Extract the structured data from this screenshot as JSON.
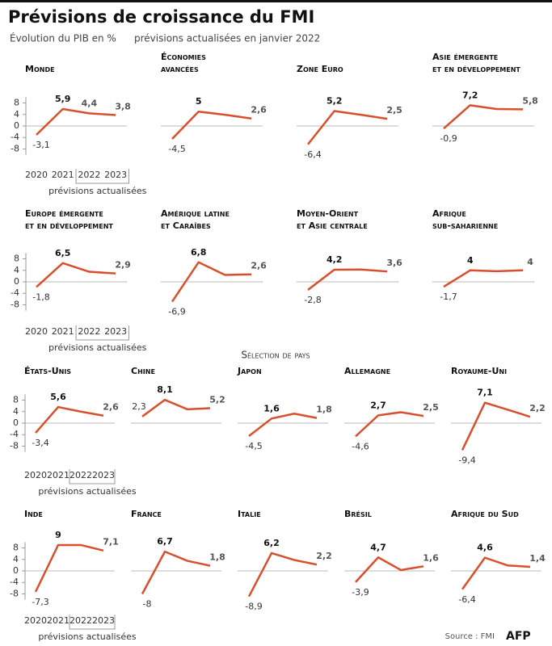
{
  "header": {
    "title": "Prévisions de croissance du FMI",
    "subtitle": "Évolution du PIB en %",
    "note": "prévisions actualisées en janvier 2022"
  },
  "section": "Sélection de pays",
  "source": "Source : FMI",
  "credit": "AFP",
  "chart_data": [
    {
      "type": "line",
      "title": [
        "Monde"
      ],
      "categories": [
        "2020",
        "2021",
        "2022",
        "2023"
      ],
      "xlabel": "prévisions actualisées",
      "values": [
        -3.1,
        5.9,
        4.4,
        3.8
      ],
      "value_labels": [
        "-3,1",
        "5,9",
        "4,4",
        "3,8"
      ],
      "color": "#d6502e",
      "ylim": [
        -10,
        10
      ],
      "yticks": [
        8,
        4,
        0,
        -4,
        -8
      ]
    },
    {
      "type": "line",
      "title": [
        "Économies",
        "avancées"
      ],
      "values": [
        -4.5,
        5,
        3.9,
        2.6
      ],
      "value_labels": [
        "-4,5",
        "5",
        null,
        "2,6"
      ],
      "color": "#d6502e",
      "ylim": [
        -10,
        10
      ]
    },
    {
      "type": "line",
      "title": [
        "Zone Euro"
      ],
      "values": [
        -6.4,
        5.2,
        3.9,
        2.5
      ],
      "value_labels": [
        "-6,4",
        "5,2",
        null,
        "2,5"
      ],
      "color": "#d6502e",
      "ylim": [
        -10,
        10
      ]
    },
    {
      "type": "line",
      "title": [
        "Asie émergente",
        "et en développement"
      ],
      "values": [
        -0.9,
        7.2,
        5.9,
        5.8
      ],
      "value_labels": [
        "-0,9",
        "7,2",
        null,
        "5,8"
      ],
      "color": "#d6502e",
      "ylim": [
        -10,
        10
      ]
    },
    {
      "type": "line",
      "title": [
        "Europe émergente",
        "et en développement"
      ],
      "categories": [
        "2020",
        "2021",
        "2022",
        "2023"
      ],
      "xlabel": "prévisions actualisées",
      "values": [
        -1.8,
        6.5,
        3.5,
        2.9
      ],
      "value_labels": [
        "-1,8",
        "6,5",
        null,
        "2,9"
      ],
      "color": "#d6502e",
      "ylim": [
        -10,
        10
      ],
      "yticks": [
        8,
        4,
        0,
        -4,
        -8
      ]
    },
    {
      "type": "line",
      "title": [
        "Amérique latine",
        "et Caraïbes"
      ],
      "values": [
        -6.9,
        6.8,
        2.4,
        2.6
      ],
      "value_labels": [
        "-6,9",
        "6,8",
        null,
        "2,6"
      ],
      "color": "#d6502e",
      "ylim": [
        -10,
        10
      ]
    },
    {
      "type": "line",
      "title": [
        "Moyen-Orient",
        "et Asie centrale"
      ],
      "values": [
        -2.8,
        4.2,
        4.3,
        3.6
      ],
      "value_labels": [
        "-2,8",
        "4,2",
        null,
        "3,6"
      ],
      "color": "#d6502e",
      "ylim": [
        -10,
        10
      ]
    },
    {
      "type": "line",
      "title": [
        "Afrique",
        "sub-saharienne"
      ],
      "values": [
        -1.7,
        4,
        3.7,
        4
      ],
      "value_labels": [
        "-1,7",
        "4",
        null,
        "4"
      ],
      "color": "#d6502e",
      "ylim": [
        -10,
        10
      ]
    },
    {
      "type": "line",
      "title": [
        "États-Unis"
      ],
      "categories": [
        "2020",
        "2021",
        "2022",
        "2023"
      ],
      "xlabel": "prévisions actualisées",
      "values": [
        -3.4,
        5.6,
        4.0,
        2.6
      ],
      "value_labels": [
        "-3,4",
        "5,6",
        null,
        "2,6"
      ],
      "color": "#d6502e",
      "ylim": [
        -10,
        10
      ],
      "yticks": [
        8,
        4,
        0,
        -4,
        -8
      ]
    },
    {
      "type": "line",
      "title": [
        "Chine"
      ],
      "values": [
        2.3,
        8.1,
        4.8,
        5.2
      ],
      "value_labels": [
        "2,3",
        "8,1",
        null,
        "5,2"
      ],
      "color": "#d6502e",
      "ylim": [
        -10,
        10
      ]
    },
    {
      "type": "line",
      "title": [
        "Japon"
      ],
      "values": [
        -4.5,
        1.6,
        3.3,
        1.8
      ],
      "value_labels": [
        "-4,5",
        "1,6",
        null,
        "1,8"
      ],
      "color": "#d6502e",
      "ylim": [
        -10,
        10
      ]
    },
    {
      "type": "line",
      "title": [
        "Allemagne"
      ],
      "values": [
        -4.6,
        2.7,
        3.8,
        2.5
      ],
      "value_labels": [
        "-4,6",
        "2,7",
        null,
        "2,5"
      ],
      "color": "#d6502e",
      "ylim": [
        -10,
        10
      ]
    },
    {
      "type": "line",
      "title": [
        "Royaume-Uni"
      ],
      "values": [
        -9.4,
        7.1,
        4.7,
        2.2
      ],
      "value_labels": [
        "-9,4",
        "7,1",
        null,
        "2,2"
      ],
      "color": "#d6502e",
      "ylim": [
        -10,
        10
      ]
    },
    {
      "type": "line",
      "title": [
        "Inde"
      ],
      "categories": [
        "2020",
        "2021",
        "2022",
        "2023"
      ],
      "xlabel": "prévisions actualisées",
      "values": [
        -7.3,
        9,
        9,
        7.1
      ],
      "value_labels": [
        "-7,3",
        "9",
        null,
        "7,1"
      ],
      "color": "#d6502e",
      "ylim": [
        -10,
        10
      ],
      "yticks": [
        8,
        4,
        0,
        -4,
        -8
      ]
    },
    {
      "type": "line",
      "title": [
        "France"
      ],
      "values": [
        -8,
        6.7,
        3.5,
        1.8
      ],
      "value_labels": [
        "-8",
        "6,7",
        null,
        "1,8"
      ],
      "color": "#d6502e",
      "ylim": [
        -10,
        10
      ]
    },
    {
      "type": "line",
      "title": [
        "Italie"
      ],
      "values": [
        -8.9,
        6.2,
        3.8,
        2.2
      ],
      "value_labels": [
        "-8,9",
        "6,2",
        null,
        "2,2"
      ],
      "color": "#d6502e",
      "ylim": [
        -10,
        10
      ]
    },
    {
      "type": "line",
      "title": [
        "Brésil"
      ],
      "values": [
        -3.9,
        4.7,
        0.3,
        1.6
      ],
      "value_labels": [
        "-3,9",
        "4,7",
        null,
        "1,6"
      ],
      "color": "#d6502e",
      "ylim": [
        -10,
        10
      ]
    },
    {
      "type": "line",
      "title": [
        "Afrique du Sud"
      ],
      "values": [
        -6.4,
        4.6,
        1.9,
        1.4
      ],
      "value_labels": [
        "-6,4",
        "4,6",
        null,
        "1,4"
      ],
      "color": "#d6502e",
      "ylim": [
        -10,
        10
      ]
    }
  ]
}
